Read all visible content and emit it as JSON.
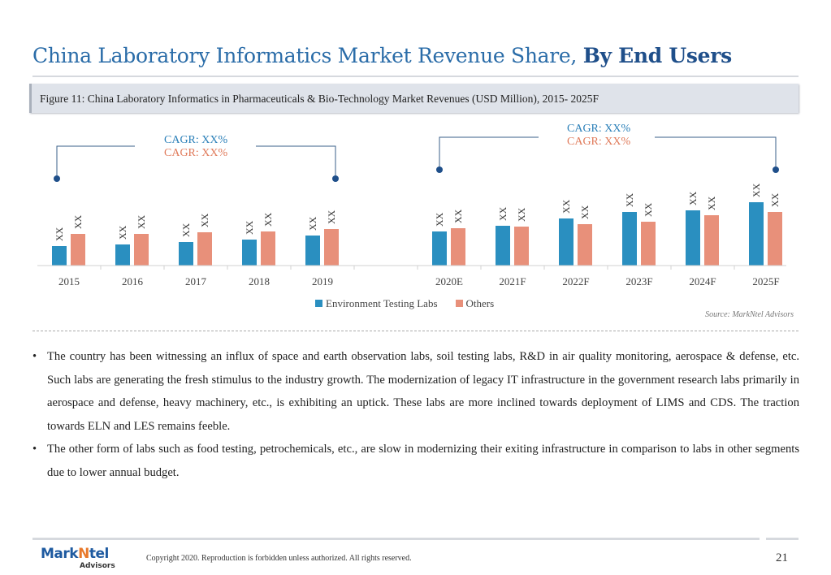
{
  "header": {
    "title_normal": "China Laboratory Informatics Market Revenue Share, ",
    "title_bold": "By End Users"
  },
  "figure": {
    "caption": "Figure 11: China Laboratory Informatics in Pharmaceuticals & Bio-Technology Market Revenues (USD Million), 2015- 2025F"
  },
  "cagr": {
    "left": {
      "line1": "CAGR: XX%",
      "line2": "CAGR: XX%"
    },
    "right": {
      "line1": "CAGR: XX%",
      "line2": "CAGR: XX%"
    }
  },
  "chart_data": {
    "type": "bar",
    "categories": [
      "2015",
      "2016",
      "2017",
      "2018",
      "2019",
      "",
      "2020E",
      "2021F",
      "2022F",
      "2023F",
      "2024F",
      "2025F"
    ],
    "series": [
      {
        "name": "Environment Testing Labs",
        "color": "#2a8fc0",
        "values": [
          24,
          26,
          29,
          32,
          37,
          null,
          42,
          49,
          58,
          66,
          68,
          78
        ],
        "labels": [
          "XX",
          "XX",
          "XX",
          "XX",
          "XX",
          null,
          "XX",
          "XX",
          "XX",
          "XX",
          "XX",
          "XX"
        ]
      },
      {
        "name": "Others",
        "color": "#e8907a",
        "values": [
          39,
          39,
          41,
          42,
          45,
          null,
          46,
          48,
          51,
          54,
          62,
          66
        ],
        "labels": [
          "XX",
          "XX",
          "XX",
          "XX",
          "XX",
          null,
          "XX",
          "XX",
          "XX",
          "XX",
          "XX",
          "XX"
        ]
      }
    ],
    "ylim": [
      0,
      100
    ],
    "legend": "bottom-center"
  },
  "source": "Source: MarkNtel Advisors",
  "bullets": [
    "The country has been witnessing an influx of space and earth observation labs, soil testing labs, R&D in air quality monitoring, aerospace & defense, etc. Such labs are generating the fresh stimulus to the industry growth. The modernization of legacy IT infrastructure in the government research labs primarily in aerospace and defense, heavy machinery, etc., is exhibiting an uptick.  These labs are more inclined towards deployment of LIMS and CDS. The traction towards ELN and LES remains feeble.",
    "The other form of labs such as food testing, petrochemicals,  etc., are slow in modernizing their exiting infrastructure in comparison to labs in other segments due to lower annual budget."
  ],
  "footer": {
    "logo_main_a": "Mark",
    "logo_main_b": "N",
    "logo_main_c": "tel",
    "logo_sub": "Advisors",
    "copyright": "Copyright 2020. Reproduction is forbidden unless authorized. All rights reserved.",
    "page_number": "21"
  }
}
